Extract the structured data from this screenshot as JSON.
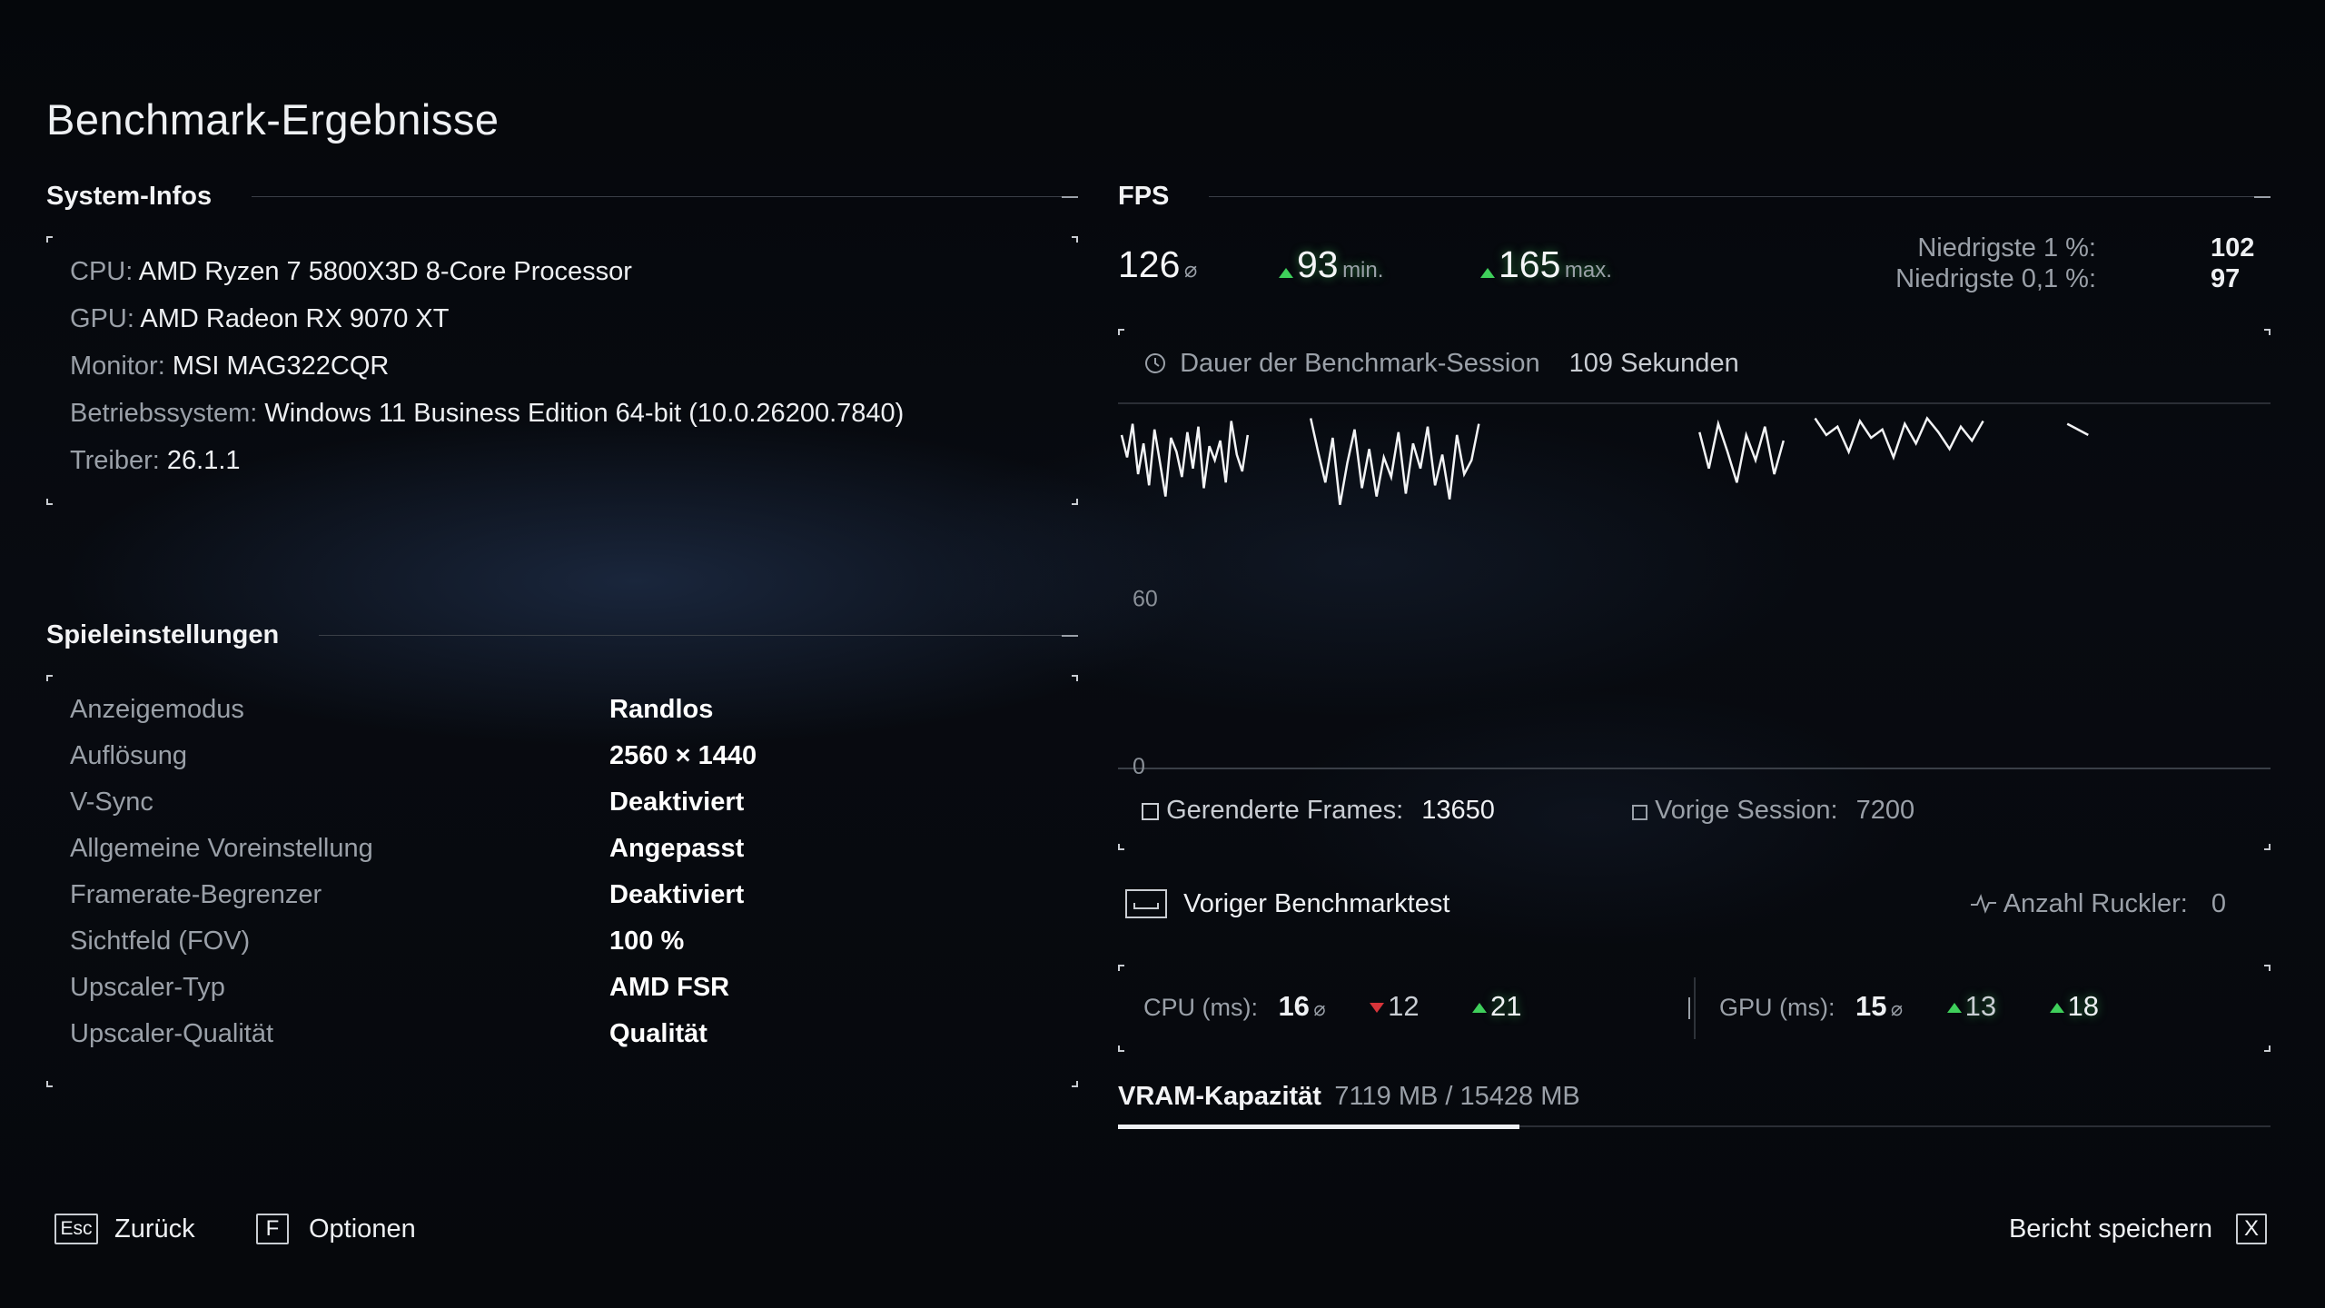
{
  "title": "Benchmark-Ergebnisse",
  "system": {
    "header": "System-Infos",
    "lines": [
      {
        "label": "CPU:",
        "value": "AMD Ryzen 7 5800X3D 8-Core Processor"
      },
      {
        "label": "GPU:",
        "value": "AMD Radeon RX 9070 XT"
      },
      {
        "label": "Monitor:",
        "value": "MSI MAG322CQR"
      },
      {
        "label": "Betriebssystem:",
        "value": "Windows 11 Business Edition 64-bit (10.0.26200.7840)"
      },
      {
        "label": "Treiber:",
        "value": "26.1.1"
      }
    ]
  },
  "settings": {
    "header": "Spieleinstellungen",
    "rows": [
      {
        "label": "Anzeigemodus",
        "value": "Randlos"
      },
      {
        "label": "Auflösung",
        "value": "2560 × 1440"
      },
      {
        "label": "V-Sync",
        "value": "Deaktiviert"
      },
      {
        "label": "Allgemeine Voreinstellung",
        "value": "Angepasst"
      },
      {
        "label": "Framerate-Begrenzer",
        "value": "Deaktiviert"
      },
      {
        "label": "Sichtfeld (FOV)",
        "value": "100 %"
      },
      {
        "label": "Upscaler-Typ",
        "value": "AMD FSR"
      },
      {
        "label": "Upscaler-Qualität",
        "value": "Qualität"
      }
    ]
  },
  "fps": {
    "header": "FPS",
    "avg": "126",
    "avg_unit": "⌀",
    "min": "93",
    "min_unit": "min.",
    "max": "165",
    "max_unit": "max.",
    "low1_label": "Niedrigste 1 %:",
    "low1_value": "102",
    "low01_label": "Niedrigste 0,1 %:",
    "low01_value": "97",
    "duration_label": "Dauer der Benchmark-Session",
    "duration_value": "109 Sekunden",
    "rendered_label": "Gerenderte Frames:",
    "rendered_value": "13650",
    "previous_label": "Vorige Session:",
    "previous_value": "7200"
  },
  "chart_data": {
    "type": "line",
    "y_ticks": [
      "0",
      "60"
    ],
    "ylim": [
      0,
      130
    ],
    "xlim": [
      0,
      109
    ],
    "series": [
      {
        "segments": [
          {
            "x_start": 0,
            "x_end": 12,
            "values": [
              118,
              110,
              122,
              104,
              115,
              100,
              120,
              108,
              96,
              117,
              112,
              103,
              119,
              106,
              121,
              99,
              114,
              109,
              116,
              101,
              123,
              111,
              105,
              118
            ]
          },
          {
            "x_start": 18,
            "x_end": 34,
            "values": [
              124,
              112,
              101,
              117,
              93,
              108,
              120,
              99,
              113,
              96,
              110,
              103,
              119,
              97,
              115,
              106,
              121,
              100,
              111,
              95,
              118,
              104,
              109,
              122
            ]
          },
          {
            "x_start": 55,
            "x_end": 63,
            "values": [
              119,
              106,
              122,
              112,
              101,
              118,
              109,
              121,
              104,
              116
            ]
          },
          {
            "x_start": 66,
            "x_end": 82,
            "values": [
              124,
              118,
              121,
              112,
              123,
              117,
              120,
              110,
              122,
              115,
              124,
              119,
              113,
              121,
              116,
              123
            ]
          },
          {
            "x_start": 90,
            "x_end": 92,
            "values": [
              122,
              118
            ]
          }
        ]
      }
    ],
    "grid": false
  },
  "previous_test": {
    "label": "Voriger Benchmarktest",
    "stutter_label": "Anzahl Ruckler:",
    "stutter_value": "0"
  },
  "frametimes": {
    "cpu_label": "CPU (ms):",
    "cpu_avg": "16",
    "cpu_min": "12",
    "cpu_max": "21",
    "gpu_label": "GPU (ms):",
    "gpu_avg": "15",
    "gpu_min": "13",
    "gpu_max": "18",
    "avg_unit": "⌀"
  },
  "vram": {
    "label": "VRAM-Kapazität",
    "value": "7119 MB / 15428 MB",
    "used_mb": 7119,
    "total_mb": 15428
  },
  "footer": {
    "back_key": "Esc",
    "back_label": "Zurück",
    "options_key": "F",
    "options_label": "Optionen",
    "save_label": "Bericht speichern",
    "save_key": "X"
  },
  "colors": {
    "accent_up": "#3fcf5b",
    "accent_down": "#d8343a",
    "background": "#06080c"
  }
}
